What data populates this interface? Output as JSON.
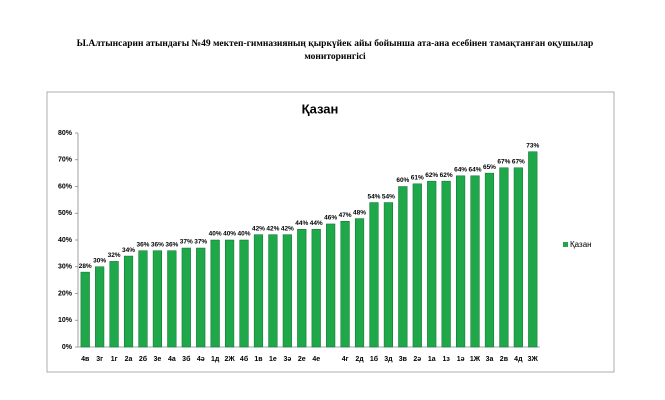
{
  "chart_data": {
    "type": "bar",
    "page_title": "Ы.Алтынсарин атындағы №49 мектеп-гимназияның  қыркүйек айы бойынша ата-ана есебінен  тамақтанған оқушылар мониторингісі",
    "title": "Қазан",
    "categories": [
      "4в",
      "3г",
      "1г",
      "2а",
      "2б",
      "3е",
      "4а",
      "3б",
      "4ә",
      "1д",
      "2Ж",
      "4б",
      "1в",
      "1е",
      "3ә",
      "2е",
      "4е",
      null,
      "4г",
      "2д",
      "1б",
      "3д",
      "3в",
      "2ә",
      "1а",
      "1з",
      "1ә",
      "1Ж",
      "3а",
      "2в",
      "4д",
      "3Ж"
    ],
    "series": [
      {
        "name": "Қазан",
        "color": "#1ea84a",
        "values": [
          28,
          30,
          32,
          34,
          36,
          36,
          36,
          37,
          37,
          40,
          40,
          40,
          42,
          42,
          42,
          44,
          44,
          46,
          47,
          48,
          54,
          54,
          60,
          61,
          62,
          62,
          64,
          64,
          65,
          67,
          67,
          73
        ],
        "value_labels": [
          "28%",
          "30%",
          "32%",
          "34%",
          "36%",
          "36%",
          "36%",
          "37%",
          "37%",
          "40%",
          "40%",
          "40%",
          "42%",
          "42%",
          "42%",
          "44%",
          "44%",
          "46%",
          "47%",
          "48%",
          "54%",
          "54%",
          "60%",
          "61%",
          "62%",
          "62%",
          "64%",
          "64%",
          "65%",
          "67%",
          "67%",
          "73%"
        ]
      }
    ],
    "ylim": [
      0,
      80
    ],
    "yticks": [
      {
        "value": 0,
        "label": "0%"
      },
      {
        "value": 10,
        "label": "10%"
      },
      {
        "value": 20,
        "label": "20%"
      },
      {
        "value": 30,
        "label": "30%"
      },
      {
        "value": 40,
        "label": "40%"
      },
      {
        "value": 50,
        "label": "50%"
      },
      {
        "value": 60,
        "label": "60%"
      },
      {
        "value": 70,
        "label": "70%"
      },
      {
        "value": 80,
        "label": "80%"
      }
    ],
    "legend": "right"
  }
}
